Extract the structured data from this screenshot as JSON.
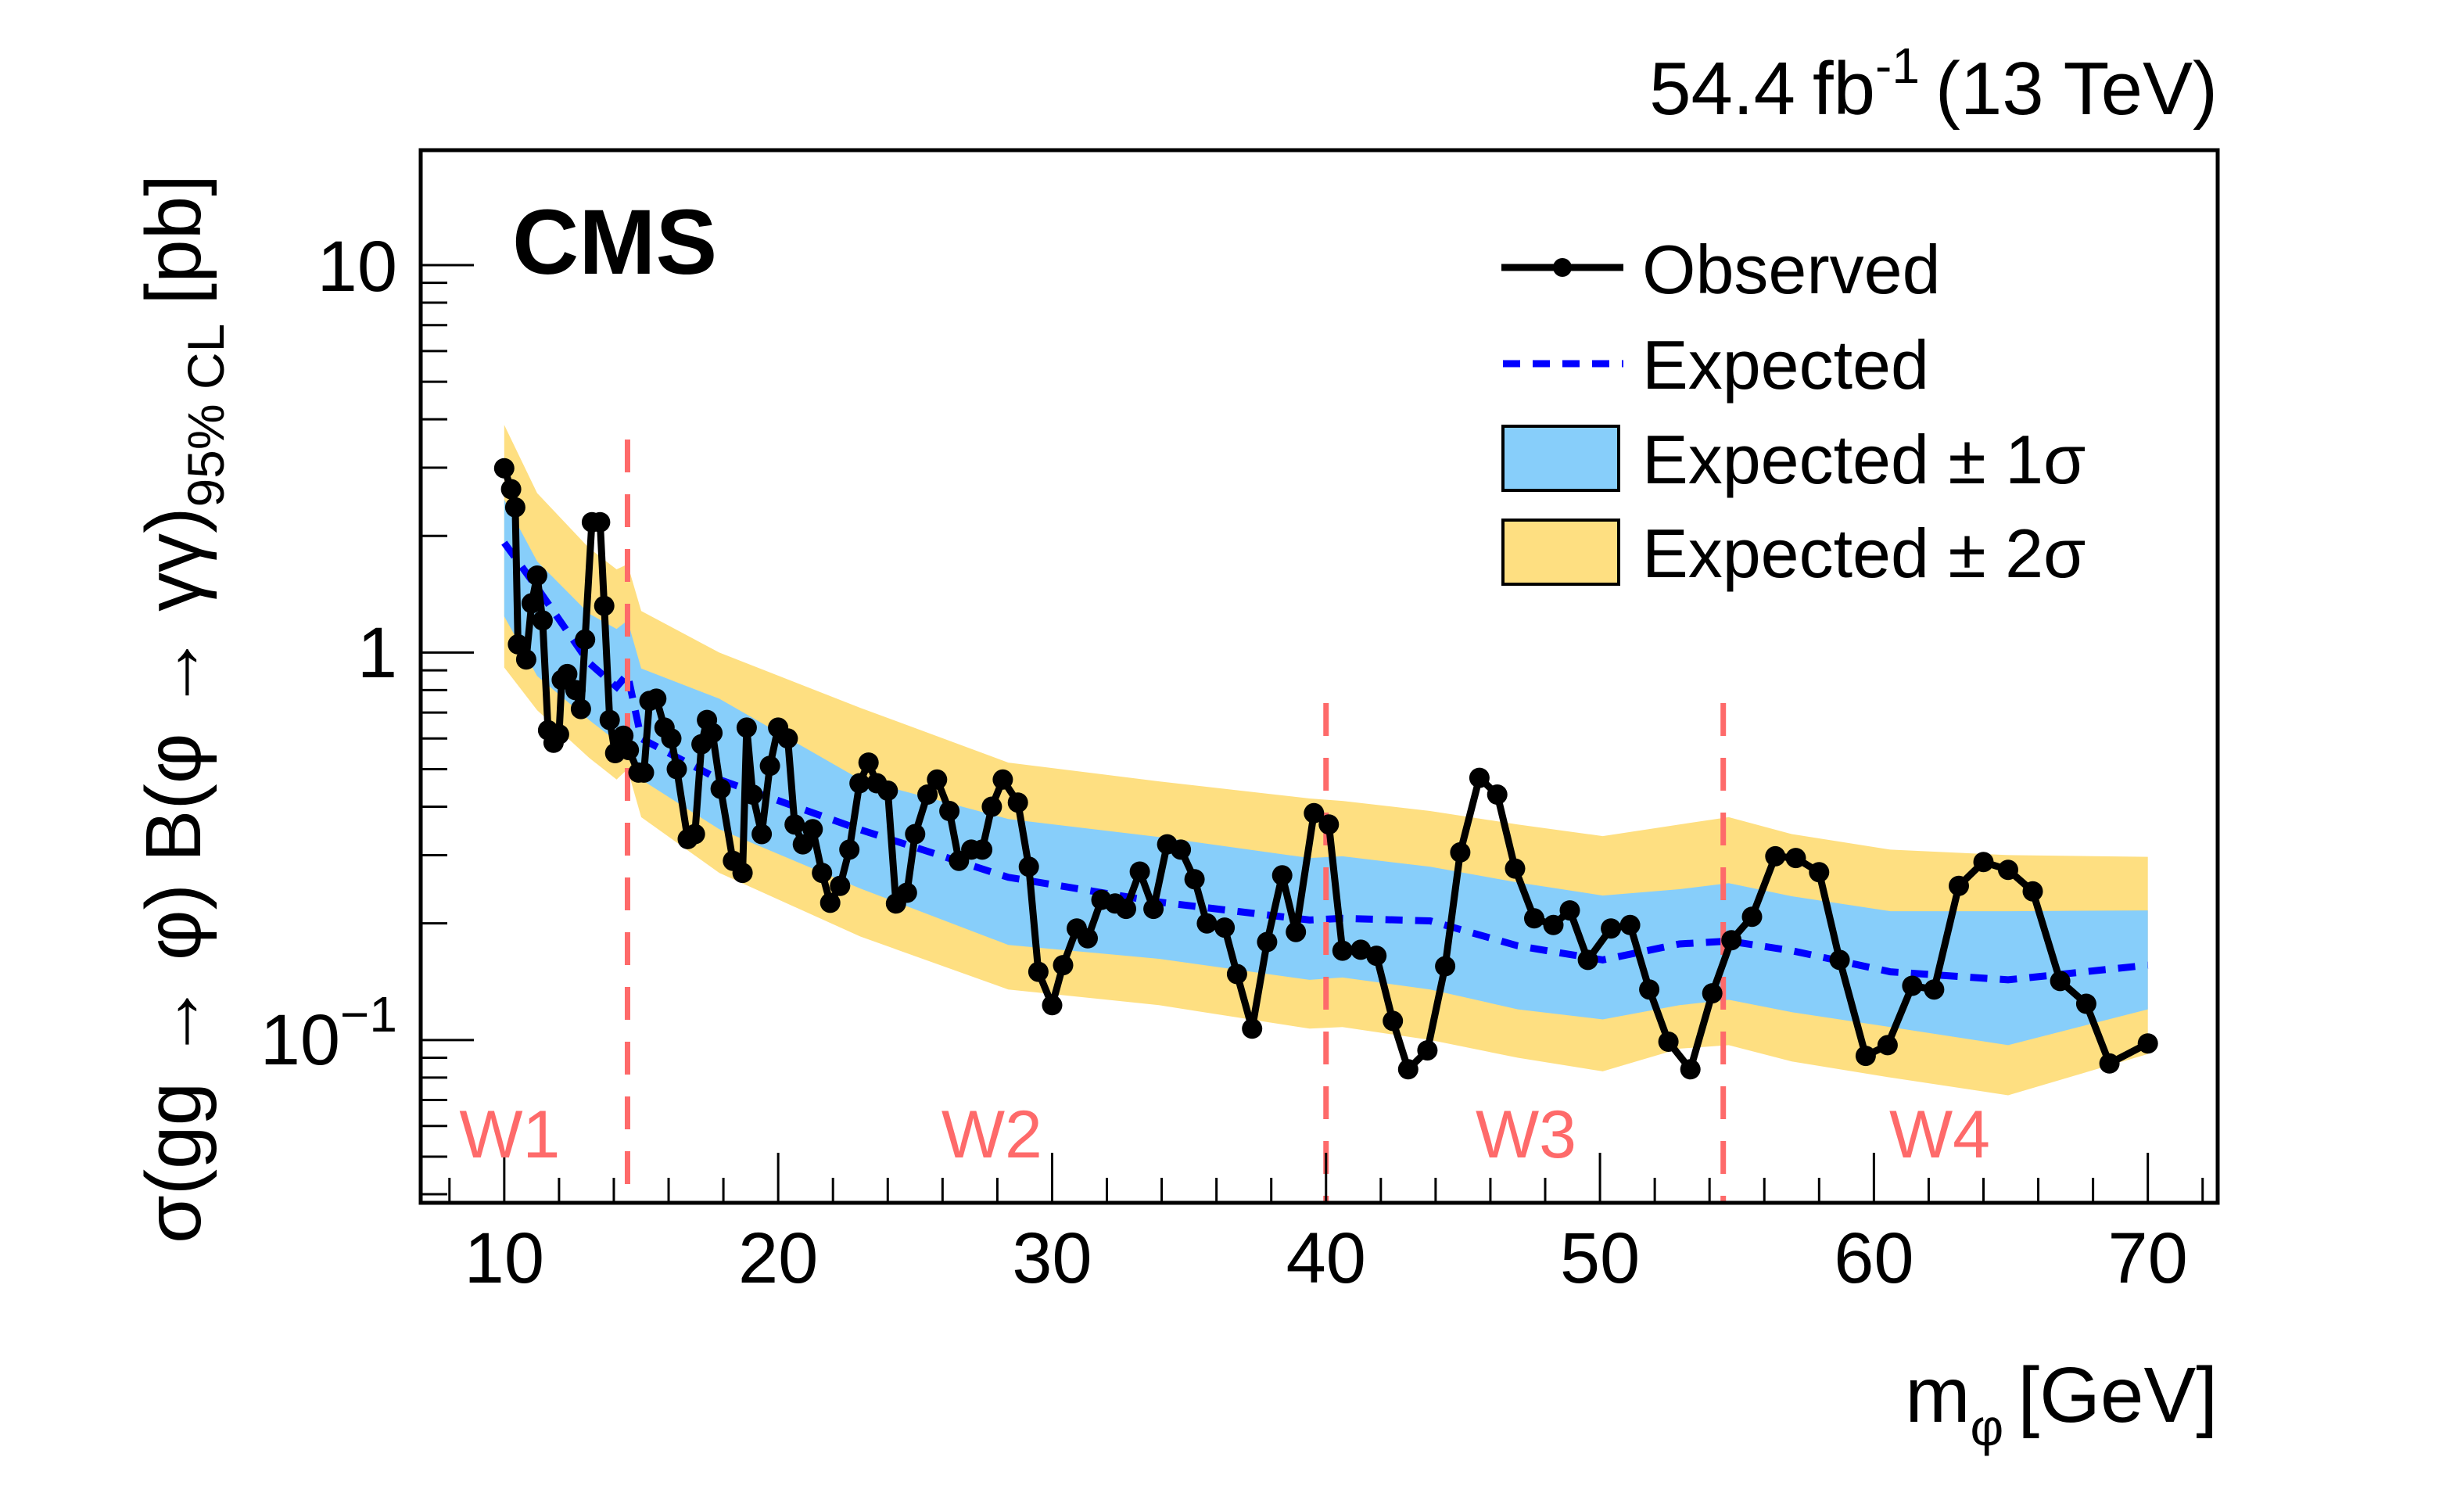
{
  "chart_data": {
    "type": "line",
    "title": "",
    "experiment_label": "CMS",
    "lumi_label": {
      "value": "54.4",
      "unit": "fb",
      "unit_superscript": "-1",
      "energy": "(13 TeV)"
    },
    "xlabel": {
      "main": "m",
      "subscript": "φ",
      "unit": "[GeV]"
    },
    "ylabel": {
      "main": "σ(gg → φ) B(φ → γγ)",
      "subscript": "95% CL",
      "unit": "[pb]"
    },
    "xlim": [
      6.95,
      72.55
    ],
    "ylim": [
      0.038,
      19.8
    ],
    "yscale": "log",
    "x_ticks": [
      10,
      20,
      30,
      40,
      50,
      60,
      70
    ],
    "x_tick_labels": [
      "10",
      "20",
      "30",
      "40",
      "50",
      "60",
      "70"
    ],
    "x_minor_step": 2,
    "y_ticks": [
      {
        "value": 10,
        "base": "10",
        "exp": ""
      },
      {
        "value": 1,
        "base": "1",
        "exp": ""
      },
      {
        "value": 0.1,
        "base": "10",
        "exp": "−1"
      }
    ],
    "legend": {
      "position": "top-right",
      "entries": [
        {
          "key": "observed",
          "label": "Observed",
          "style": "line-marker"
        },
        {
          "key": "expected",
          "label": "Expected",
          "style": "dashed"
        },
        {
          "key": "band1",
          "label": "Expected ± 1σ",
          "style": "box"
        },
        {
          "key": "band2",
          "label": "Expected ± 2σ",
          "style": "box"
        }
      ]
    },
    "colors": {
      "observed": "#000000",
      "expected": "#0000ff",
      "band1": "#87cefa",
      "band2": "#fedf81",
      "window_lines": "#fe6a6a",
      "window_labels": "#fe6a6a"
    },
    "windows": {
      "boundaries": [
        14.5,
        40.0,
        54.5
      ],
      "labels": [
        {
          "text": "W1",
          "x": 10.2
        },
        {
          "text": "W2",
          "x": 27.8
        },
        {
          "text": "W3",
          "x": 47.3
        },
        {
          "text": "W4",
          "x": 62.4
        }
      ]
    },
    "band_x": [
      10.0,
      11.2,
      13.1,
      14.1,
      14.5,
      15.0,
      17.85,
      23.0,
      28.4,
      33.9,
      39.4,
      40.6,
      43.8,
      47.0,
      50.1,
      52.9,
      54.7,
      57.0,
      60.6,
      64.9,
      70.0
    ],
    "expected": [
      1.92,
      1.47,
      0.94,
      0.815,
      0.88,
      0.6,
      0.47,
      0.349,
      0.263,
      0.227,
      0.204,
      0.206,
      0.203,
      0.175,
      0.161,
      0.177,
      0.18,
      0.17,
      0.15,
      0.143,
      0.156
    ],
    "band1_upper": [
      2.48,
      1.72,
      1.26,
      1.15,
      1.21,
      0.91,
      0.76,
      0.47,
      0.372,
      0.334,
      0.295,
      0.298,
      0.28,
      0.255,
      0.236,
      0.245,
      0.254,
      0.235,
      0.215,
      0.215,
      0.216
    ],
    "band1_lower": [
      1.24,
      0.87,
      0.67,
      0.59,
      0.62,
      0.47,
      0.35,
      0.246,
      0.176,
      0.162,
      0.143,
      0.145,
      0.135,
      0.12,
      0.113,
      0.123,
      0.127,
      0.118,
      0.108,
      0.097,
      0.12
    ],
    "band2_upper": [
      3.87,
      2.58,
      1.86,
      1.64,
      1.69,
      1.28,
      1.0,
      0.72,
      0.52,
      0.465,
      0.42,
      0.414,
      0.39,
      0.36,
      0.336,
      0.36,
      0.376,
      0.34,
      0.31,
      0.3,
      0.297
    ],
    "band2_lower": [
      0.915,
      0.71,
      0.535,
      0.47,
      0.5,
      0.376,
      0.27,
      0.185,
      0.135,
      0.123,
      0.107,
      0.108,
      0.1,
      0.09,
      0.083,
      0.095,
      0.097,
      0.088,
      0.08,
      0.072,
      0.092
    ],
    "observed": {
      "x": [
        10.0,
        10.25,
        10.4,
        10.5,
        10.8,
        11.0,
        11.2,
        11.4,
        11.6,
        11.8,
        12.0,
        12.1,
        12.3,
        12.6,
        12.8,
        12.95,
        13.2,
        13.5,
        13.65,
        13.85,
        14.05,
        14.35,
        14.55,
        14.9,
        15.1,
        15.3,
        15.55,
        15.85,
        16.1,
        16.3,
        16.7,
        16.96,
        17.2,
        17.4,
        17.6,
        17.9,
        18.35,
        18.7,
        18.85,
        19.07,
        19.4,
        19.7,
        20.0,
        20.35,
        20.6,
        20.9,
        21.26,
        21.6,
        21.9,
        22.26,
        22.6,
        22.97,
        23.3,
        23.6,
        24.0,
        24.3,
        24.7,
        25.0,
        25.45,
        25.8,
        26.25,
        26.6,
        27.05,
        27.45,
        27.8,
        28.2,
        28.75,
        29.15,
        29.5,
        30.0,
        30.4,
        30.9,
        31.3,
        31.8,
        32.3,
        32.7,
        33.2,
        33.7,
        34.2,
        34.7,
        35.2,
        35.65,
        36.3,
        36.75,
        37.3,
        37.85,
        38.4,
        38.9,
        39.56,
        40.1,
        40.6,
        41.27,
        41.84,
        42.44,
        43.0,
        43.7,
        44.35,
        44.9,
        45.6,
        46.25,
        46.9,
        47.6,
        48.3,
        48.9,
        49.56,
        50.4,
        51.1,
        51.8,
        52.5,
        53.3,
        54.1,
        54.8,
        55.55,
        56.4,
        57.15,
        58.0,
        58.75,
        59.7,
        60.5,
        61.4,
        62.2,
        63.1,
        64.0,
        64.9,
        65.8,
        66.8,
        67.75,
        68.6,
        70.0
      ],
      "y": [
        2.99,
        2.64,
        2.37,
        1.05,
        0.96,
        1.34,
        1.58,
        1.21,
        0.63,
        0.585,
        0.615,
        0.85,
        0.88,
        0.8,
        0.715,
        1.08,
        2.17,
        2.17,
        1.32,
        0.67,
        0.55,
        0.61,
        0.56,
        0.49,
        0.49,
        0.75,
        0.76,
        0.64,
        0.6,
        0.5,
        0.33,
        0.34,
        0.58,
        0.67,
        0.62,
        0.445,
        0.29,
        0.27,
        0.64,
        0.43,
        0.34,
        0.51,
        0.64,
        0.6,
        0.36,
        0.32,
        0.35,
        0.27,
        0.226,
        0.25,
        0.31,
        0.46,
        0.52,
        0.46,
        0.44,
        0.225,
        0.24,
        0.34,
        0.43,
        0.47,
        0.39,
        0.29,
        0.31,
        0.31,
        0.4,
        0.47,
        0.41,
        0.28,
        0.15,
        0.123,
        0.156,
        0.194,
        0.183,
        0.23,
        0.225,
        0.218,
        0.272,
        0.218,
        0.32,
        0.31,
        0.26,
        0.2,
        0.195,
        0.148,
        0.107,
        0.179,
        0.266,
        0.19,
        0.385,
        0.36,
        0.17,
        0.171,
        0.165,
        0.112,
        0.084,
        0.094,
        0.155,
        0.305,
        0.475,
        0.43,
        0.277,
        0.206,
        0.198,
        0.216,
        0.161,
        0.194,
        0.198,
        0.135,
        0.099,
        0.084,
        0.132,
        0.181,
        0.208,
        0.298,
        0.295,
        0.271,
        0.161,
        0.091,
        0.097,
        0.138,
        0.135,
        0.25,
        0.288,
        0.275,
        0.242,
        0.142,
        0.124,
        0.087,
        0.098
      ]
    }
  }
}
